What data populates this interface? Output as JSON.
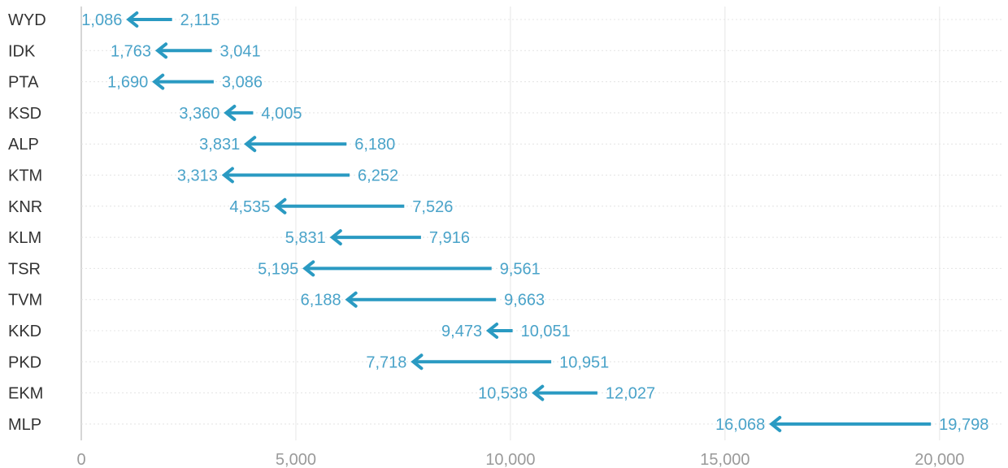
{
  "chart_data": {
    "type": "arrow",
    "title": "",
    "xlabel": "",
    "ylabel": "",
    "xlim": [
      0,
      21500
    ],
    "x_ticks": [
      0,
      5000,
      10000,
      15000,
      20000
    ],
    "x_tick_labels": [
      "0",
      "5,000",
      "10,000",
      "15,000",
      "20,000"
    ],
    "grid": true,
    "accent_color": "#2a9ac2",
    "label_color": "#4aa3c9",
    "categories": [
      "WYD",
      "IDK",
      "PTA",
      "KSD",
      "ALP",
      "KTM",
      "KNR",
      "KLM",
      "TSR",
      "TVM",
      "KKD",
      "PKD",
      "EKM",
      "MLP"
    ],
    "from_values": [
      2115,
      3041,
      3086,
      4005,
      6180,
      6252,
      7526,
      7916,
      9561,
      9663,
      10051,
      10951,
      12027,
      19798
    ],
    "to_values": [
      1086,
      1763,
      1690,
      3360,
      3831,
      3313,
      4535,
      5831,
      5195,
      6188,
      9473,
      7718,
      10538,
      16068
    ],
    "from_labels": [
      "2,115",
      "3,041",
      "3,086",
      "4,005",
      "6,180",
      "6,252",
      "7,526",
      "7,916",
      "9,561",
      "9,663",
      "10,051",
      "10,951",
      "12,027",
      "19,798"
    ],
    "to_labels": [
      "1,086",
      "1,763",
      "1,690",
      "3,360",
      "3,831",
      "3,313",
      "4,535",
      "5,831",
      "5,195",
      "6,188",
      "9,473",
      "7,718",
      "10,538",
      "16,068"
    ]
  }
}
